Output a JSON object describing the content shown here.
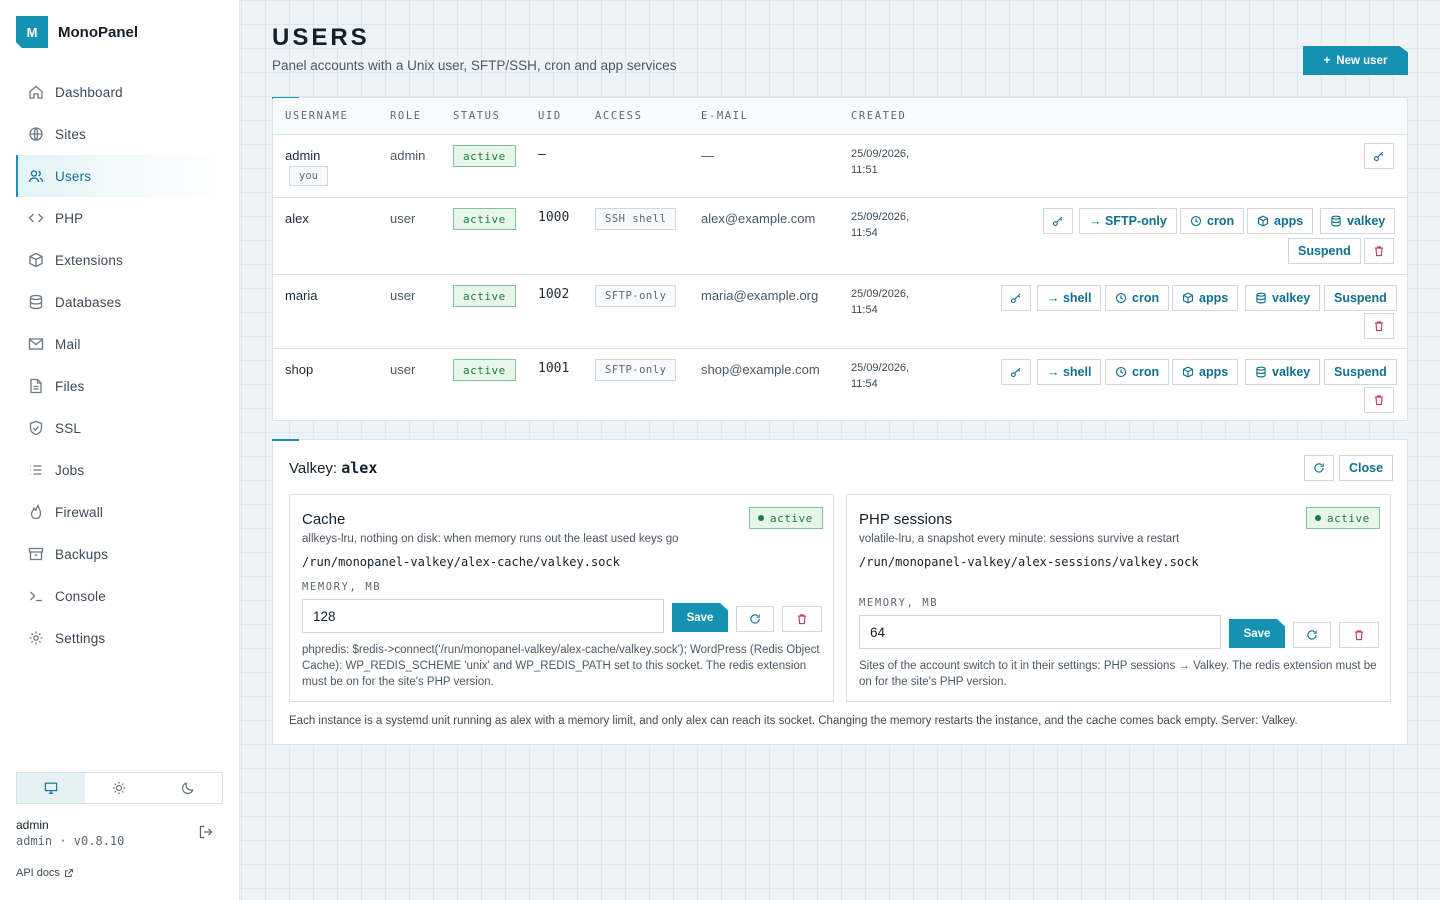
{
  "brand": {
    "logo_letter": "M",
    "name": "MonoPanel"
  },
  "nav": [
    {
      "label": "Dashboard",
      "icon": "home-icon"
    },
    {
      "label": "Sites",
      "icon": "globe-icon"
    },
    {
      "label": "Users",
      "icon": "users-icon",
      "active": true
    },
    {
      "label": "PHP",
      "icon": "code-icon"
    },
    {
      "label": "Extensions",
      "icon": "cube-icon"
    },
    {
      "label": "Databases",
      "icon": "database-icon"
    },
    {
      "label": "Mail",
      "icon": "mail-icon"
    },
    {
      "label": "Files",
      "icon": "file-icon"
    },
    {
      "label": "SSL",
      "icon": "shield-icon"
    },
    {
      "label": "Jobs",
      "icon": "list-icon"
    },
    {
      "label": "Firewall",
      "icon": "flame-icon"
    },
    {
      "label": "Backups",
      "icon": "archive-icon"
    },
    {
      "label": "Console",
      "icon": "terminal-icon"
    },
    {
      "label": "Settings",
      "icon": "gear-icon"
    }
  ],
  "account": {
    "name": "admin",
    "subtitle": "admin · v0.8.10",
    "api_docs": "API docs"
  },
  "page": {
    "title": "USERS",
    "subtitle": "Panel accounts with a Unix user, SFTP/SSH, cron and app services",
    "new_user_label": "New user"
  },
  "table": {
    "columns": [
      "USERNAME",
      "ROLE",
      "STATUS",
      "UID",
      "ACCESS",
      "E-MAIL",
      "CREATED"
    ],
    "rows": [
      {
        "username": "admin",
        "you": "you",
        "role": "admin",
        "status": "active",
        "uid": "—",
        "access": "",
        "email": "—",
        "created_date": "25/09/2026,",
        "created_time": "11:51"
      },
      {
        "username": "alex",
        "role": "user",
        "status": "active",
        "uid": "1000",
        "access": "SSH shell",
        "email": "alex@example.com",
        "created_date": "25/09/2026,",
        "created_time": "11:54",
        "toggle_label": "→ SFTP-only"
      },
      {
        "username": "maria",
        "role": "user",
        "status": "active",
        "uid": "1002",
        "access": "SFTP-only",
        "email": "maria@example.org",
        "created_date": "25/09/2026,",
        "created_time": "11:54",
        "toggle_label": "→ shell"
      },
      {
        "username": "shop",
        "role": "user",
        "status": "active",
        "uid": "1001",
        "access": "SFTP-only",
        "email": "shop@example.com",
        "created_date": "25/09/2026,",
        "created_time": "11:54",
        "toggle_label": "→ shell"
      }
    ],
    "actions": {
      "cron": "cron",
      "apps": "apps",
      "valkey": "valkey",
      "suspend": "Suspend"
    }
  },
  "valkey": {
    "title_prefix": "Valkey:",
    "title_user": "alex",
    "close_label": "Close",
    "cache": {
      "title": "Cache",
      "status": "active",
      "description": "allkeys-lru, nothing on disk: when memory runs out the least used keys go",
      "path": "/run/monopanel-valkey/alex-cache/valkey.sock",
      "memory_label": "MEMORY, MB",
      "memory_value": "128",
      "save_label": "Save",
      "note": "phpredis: $redis->connect('/run/monopanel-valkey/alex-cache/valkey.sock'); WordPress (Redis Object Cache): WP_REDIS_SCHEME 'unix' and WP_REDIS_PATH set to this socket. The redis extension must be on for the site's PHP version."
    },
    "sessions": {
      "title": "PHP sessions",
      "status": "active",
      "description": "volatile-lru, a snapshot every minute: sessions survive a restart",
      "path": "/run/monopanel-valkey/alex-sessions/valkey.sock",
      "memory_label": "MEMORY, MB",
      "memory_value": "64",
      "save_label": "Save",
      "note": "Sites of the account switch to it in their settings: PHP sessions → Valkey. The redis extension must be on for the site's PHP version."
    },
    "footer": "Each instance is a systemd unit running as alex with a memory limit, and only alex can reach its socket. Changing the memory restarts the instance, and the cache comes back empty. Server: Valkey."
  },
  "colors": {
    "accent": "#1592b3",
    "success": "#1f7a3d",
    "danger": "#c23a5f"
  }
}
